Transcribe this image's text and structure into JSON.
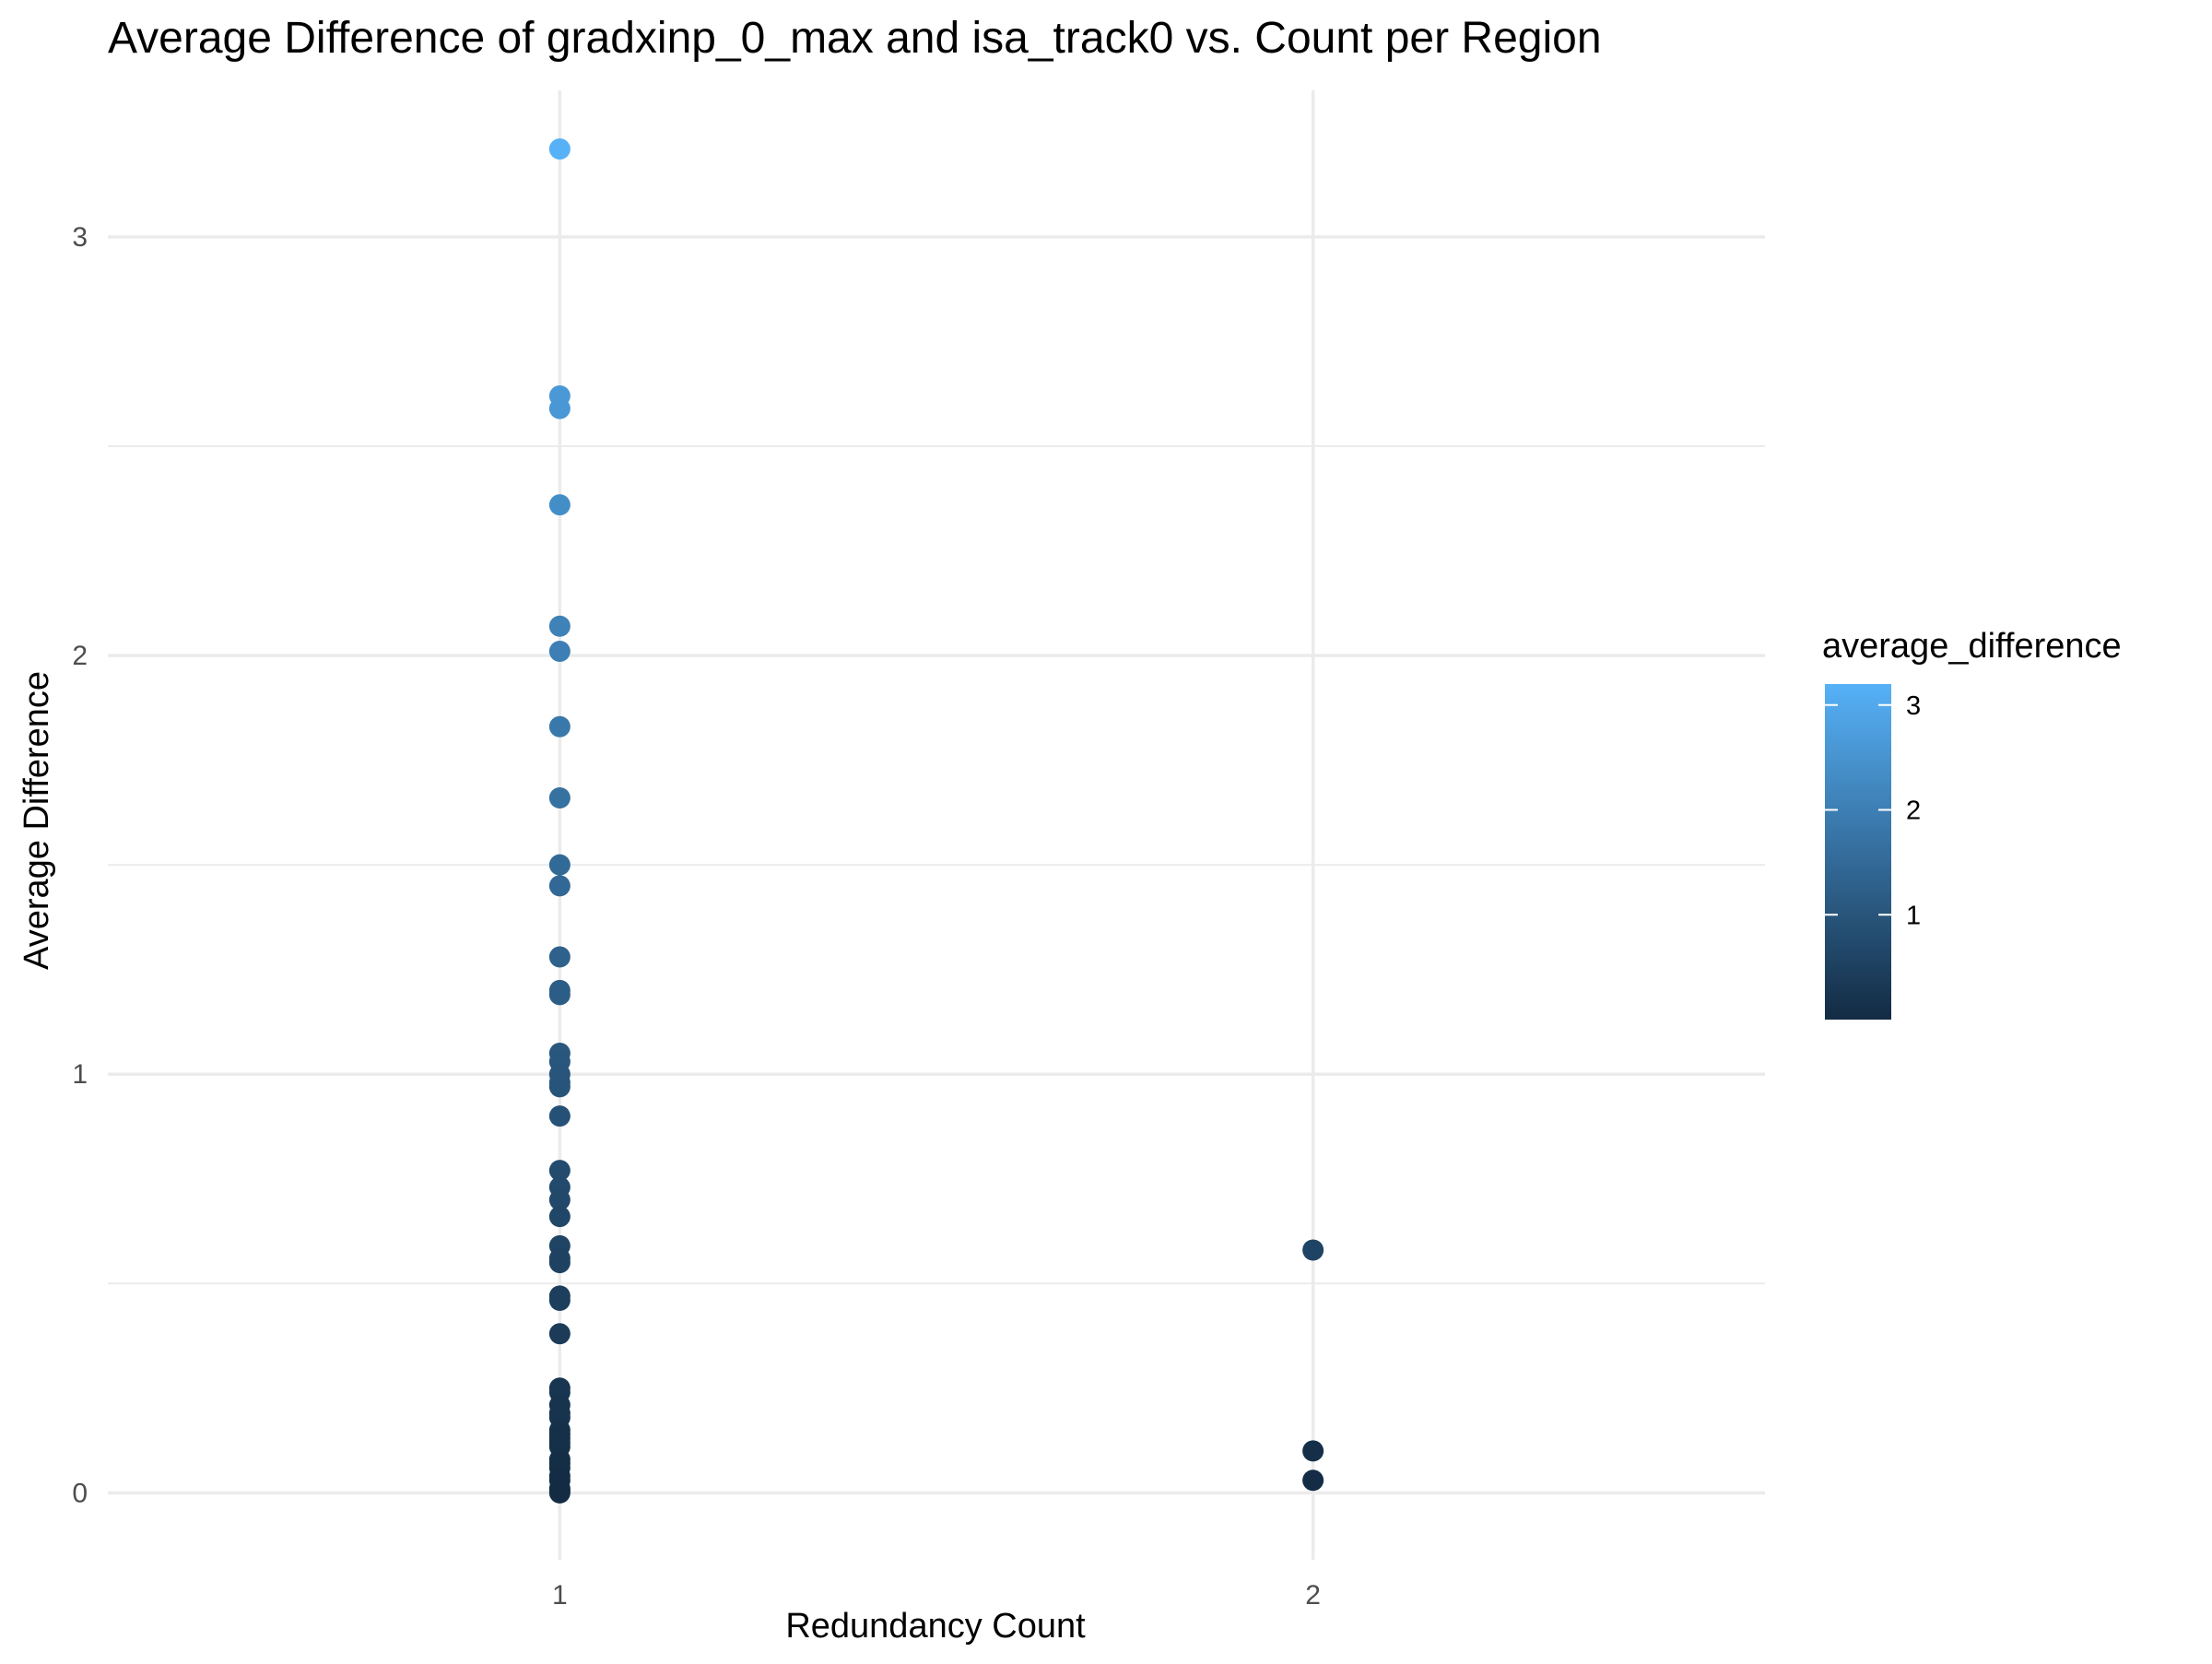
{
  "chart_data": {
    "type": "scatter",
    "title": "Average Difference of gradxinp_0_max and isa_track0 vs. Count per Region",
    "xlabel": "Redundancy Count",
    "ylabel": "Average Difference",
    "x_ticks": [
      "1",
      "2"
    ],
    "y_ticks": [
      "0",
      "1",
      "2",
      "3"
    ],
    "xlim": [
      0.4,
      2.6
    ],
    "ylim": [
      -0.16,
      3.35
    ],
    "grid": true,
    "legend": {
      "title": "average_difference",
      "placement": "right",
      "type": "colorbar",
      "labels": [
        "1",
        "2",
        "3"
      ],
      "range": [
        0.0,
        3.2
      ],
      "low_color": "#132B43",
      "high_color": "#56B1F7"
    },
    "series": [
      {
        "x": [
          1,
          1,
          1,
          1,
          1,
          1,
          1,
          1,
          1,
          1,
          1,
          1,
          1,
          1,
          1,
          1,
          1,
          1,
          1,
          1,
          1,
          1,
          1,
          1,
          1,
          1,
          1,
          1,
          1,
          1,
          1,
          1,
          1,
          1,
          1,
          1,
          1,
          1,
          1,
          1,
          1,
          1,
          1,
          1,
          1,
          1,
          1,
          2,
          2,
          2
        ],
        "y": [
          3.21,
          2.62,
          2.59,
          2.36,
          2.07,
          2.01,
          1.83,
          1.66,
          1.5,
          1.45,
          1.28,
          1.2,
          1.19,
          1.05,
          1.03,
          1.0,
          0.98,
          0.97,
          0.9,
          0.77,
          0.73,
          0.7,
          0.66,
          0.59,
          0.56,
          0.55,
          0.47,
          0.46,
          0.38,
          0.25,
          0.24,
          0.21,
          0.19,
          0.18,
          0.15,
          0.14,
          0.13,
          0.12,
          0.11,
          0.08,
          0.07,
          0.06,
          0.04,
          0.03,
          0.01,
          0.005,
          0.0,
          0.58,
          0.1,
          0.03
        ]
      }
    ]
  }
}
